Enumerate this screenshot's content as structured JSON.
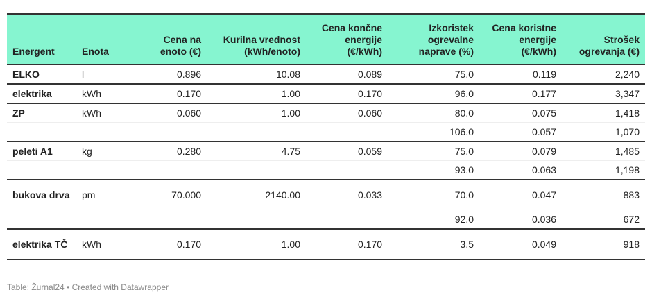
{
  "columns": [
    "Energent",
    "Enota",
    "Cena na enoto (€)",
    "Kurilna vrednost (kWh/enoto)",
    "Cena končne energije (€/kWh)",
    "Izkoristek ogrevalne naprave (%)",
    "Cena koristne energije (€/kWh)",
    "Strošek ogrevanja (€)"
  ],
  "rows": [
    [
      "ELKO",
      "l",
      "0.896",
      "10.08",
      "0.089",
      "75.0",
      "0.119",
      "2,240"
    ],
    [
      "elektrika",
      "kWh",
      "0.170",
      "1.00",
      "0.170",
      "96.0",
      "0.177",
      "3,347"
    ],
    [
      "ZP",
      "kWh",
      "0.060",
      "1.00",
      "0.060",
      "80.0",
      "0.075",
      "1,418"
    ],
    [
      "",
      "",
      "",
      "",
      "",
      "106.0",
      "0.057",
      "1,070"
    ],
    [
      "peleti A1",
      "kg",
      "0.280",
      "4.75",
      "0.059",
      "75.0",
      "0.079",
      "1,485"
    ],
    [
      "",
      "",
      "",
      "",
      "",
      "93.0",
      "0.063",
      "1,198"
    ],
    [
      "bukova drva",
      "pm",
      "70.000",
      "2140.00",
      "0.033",
      "70.0",
      "0.047",
      "883"
    ],
    [
      "",
      "",
      "",
      "",
      "",
      "92.0",
      "0.036",
      "672"
    ],
    [
      "elektrika TČ",
      "kWh",
      "0.170",
      "1.00",
      "0.170",
      "3.5",
      "0.049",
      "918"
    ]
  ],
  "footer": "Table: Žurnal24 • Created with Datawrapper",
  "colors": {
    "header_bg": "#86f5d0"
  }
}
